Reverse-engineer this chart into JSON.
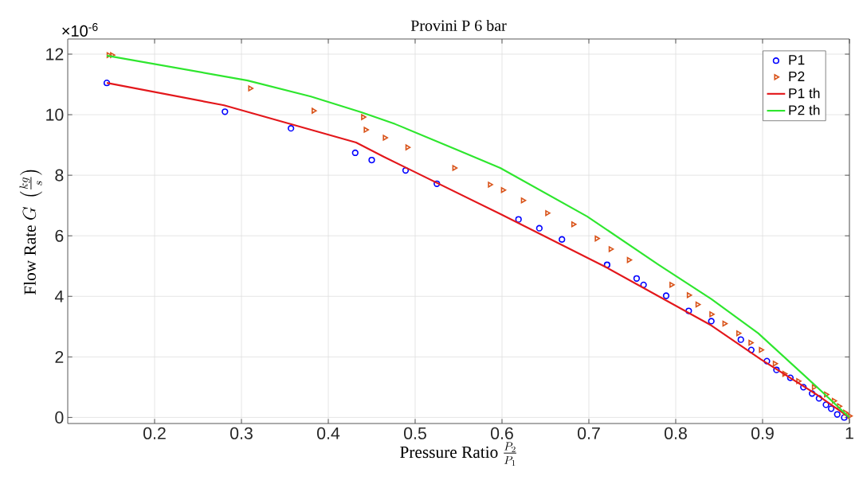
{
  "chart_data": {
    "type": "scatter",
    "title": "Provini P 6 bar",
    "xlabel": "\\text{Pressure Ratio } \\frac{P_2}{P_1}",
    "ylabel": "\\text{Flow Rate } G\\ \\left(\\frac{kg}{s}\\right)",
    "annotations": [
      "×10$^{-6}$"
    ],
    "xlim": [
      0.1,
      1
    ],
    "xticks": [
      0.2,
      0.3,
      0.4,
      0.5,
      0.6,
      0.7,
      0.8,
      0.9,
      1
    ],
    "ylim": [
      -0.2,
      12.5
    ],
    "yticks": [
      0,
      2,
      4,
      6,
      8,
      10,
      12
    ],
    "grid": true,
    "legend": "top right",
    "series": [
      {
        "name": "P1",
        "marker": "circle",
        "color": "#0000ff",
        "x": [
          0.145,
          0.281,
          0.357,
          0.431,
          0.45,
          0.489,
          0.525,
          0.619,
          0.643,
          0.669,
          0.721,
          0.755,
          0.763,
          0.789,
          0.815,
          0.841,
          0.875,
          0.887,
          0.905,
          0.916,
          0.932,
          0.947,
          0.957,
          0.965,
          0.973,
          0.979,
          0.986,
          0.994
        ],
        "values": [
          11.05,
          10.1,
          9.55,
          8.74,
          8.5,
          8.16,
          7.72,
          6.54,
          6.25,
          5.88,
          5.04,
          4.59,
          4.38,
          4.02,
          3.52,
          3.18,
          2.57,
          2.23,
          1.86,
          1.57,
          1.31,
          1.0,
          0.79,
          0.63,
          0.42,
          0.29,
          0.1,
          0.0
        ]
      },
      {
        "name": "P2",
        "marker": "triangle",
        "color": "#d95319",
        "x": [
          0.147,
          0.151,
          0.31,
          0.383,
          0.44,
          0.443,
          0.465,
          0.491,
          0.545,
          0.586,
          0.601,
          0.624,
          0.652,
          0.682,
          0.709,
          0.725,
          0.746,
          0.795,
          0.815,
          0.825,
          0.841,
          0.856,
          0.872,
          0.886,
          0.898,
          0.914,
          0.925,
          0.941,
          0.959,
          0.973,
          0.982,
          0.988,
          0.995,
          1.0
        ],
        "values": [
          11.97,
          11.97,
          10.87,
          10.13,
          9.92,
          9.5,
          9.24,
          8.92,
          8.24,
          7.69,
          7.51,
          7.17,
          6.75,
          6.38,
          5.91,
          5.56,
          5.2,
          4.38,
          4.04,
          3.73,
          3.41,
          3.1,
          2.78,
          2.47,
          2.23,
          1.78,
          1.44,
          1.2,
          1.0,
          0.76,
          0.55,
          0.37,
          0.16,
          0.05
        ]
      },
      {
        "name": "P1 th",
        "type": "line",
        "marker": "none",
        "line_style": "solid",
        "color": "#e3171b",
        "x": [
          0.145,
          0.28,
          0.432,
          0.464,
          0.598,
          0.72,
          0.841,
          0.898,
          0.962,
          1.0
        ],
        "values": [
          11.05,
          10.31,
          9.08,
          8.61,
          6.72,
          4.96,
          3.04,
          1.92,
          0.76,
          0.0
        ]
      },
      {
        "name": "P2 th",
        "type": "line",
        "marker": "none",
        "line_style": "solid",
        "color": "#2ee62e",
        "x": [
          0.145,
          0.307,
          0.38,
          0.438,
          0.477,
          0.55,
          0.598,
          0.698,
          0.78,
          0.841,
          0.895,
          0.962,
          1.0
        ],
        "values": [
          11.95,
          11.13,
          10.6,
          10.08,
          9.69,
          8.82,
          8.24,
          6.64,
          5.05,
          3.91,
          2.78,
          1.02,
          0.0
        ]
      }
    ]
  }
}
